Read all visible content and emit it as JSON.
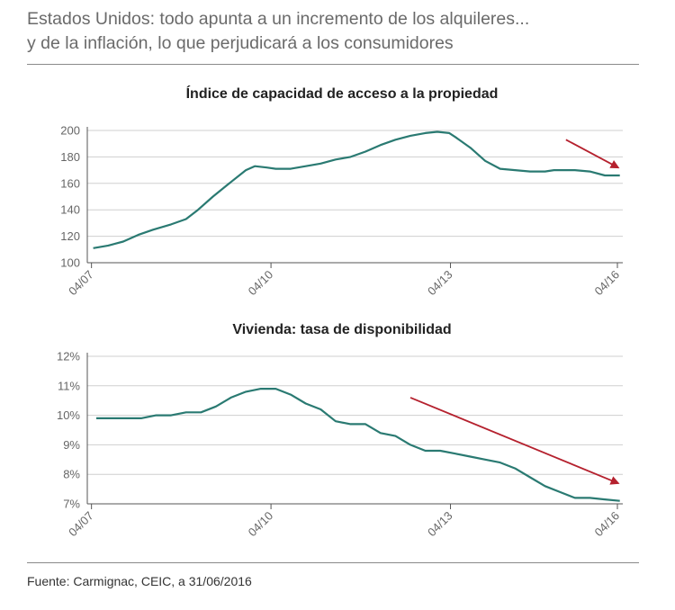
{
  "header": {
    "title_line1": "Estados Unidos: todo apunta a un incremento de los alquileres...",
    "title_line2": "y de la inflación, lo que perjudicará a los consumidores"
  },
  "source": "Fuente: Carmignac, CEIC, a 31/06/2016",
  "colors": {
    "line": "#2a7a72",
    "arrow": "#b5212e",
    "axis": "#555555",
    "grid": "#cfcfcf",
    "tick_text": "#666666"
  },
  "chart_data": [
    {
      "type": "line",
      "title": "Índice de capacidad de acceso a la propiedad",
      "xlabel": "",
      "ylabel": "",
      "ylim": [
        100,
        200
      ],
      "xlim": [
        2007.35,
        2016.3
      ],
      "yticks": [
        100,
        120,
        140,
        160,
        180,
        200
      ],
      "ytick_labels": [
        "100",
        "120",
        "140",
        "160",
        "180",
        "200"
      ],
      "xticks": [
        2007.42,
        2010.42,
        2013.42,
        2016.42
      ],
      "xtick_labels": [
        "04/07",
        "04/10",
        "04/13",
        "04/16"
      ],
      "series": [
        {
          "name": "Índice de capacidad de acceso a la propiedad",
          "x": [
            2007.45,
            2007.7,
            2007.95,
            2008.2,
            2008.45,
            2008.75,
            2009.0,
            2009.2,
            2009.45,
            2009.75,
            2010.0,
            2010.15,
            2010.35,
            2010.5,
            2010.75,
            2011.0,
            2011.25,
            2011.5,
            2011.75,
            2012.0,
            2012.25,
            2012.5,
            2012.75,
            2013.0,
            2013.2,
            2013.4,
            2013.5,
            2013.75,
            2014.0,
            2014.25,
            2014.5,
            2014.75,
            2015.0,
            2015.15,
            2015.5,
            2015.75,
            2016.0,
            2016.25
          ],
          "values": [
            111,
            113,
            116,
            121,
            125,
            129,
            133,
            140,
            150,
            161,
            170,
            173,
            172,
            171,
            171,
            173,
            175,
            178,
            180,
            184,
            189,
            193,
            196,
            198,
            199,
            198,
            195,
            187,
            177,
            171,
            170,
            169,
            169,
            170,
            170,
            169,
            166,
            166
          ]
        }
      ],
      "arrow": {
        "from": [
          2015.35,
          193
        ],
        "to": [
          2016.22,
          172
        ]
      }
    },
    {
      "type": "line",
      "title": "Vivienda: tasa de disponibilidad",
      "xlabel": "",
      "ylabel": "",
      "ylim": [
        7,
        12
      ],
      "xlim": [
        2007.35,
        2016.3
      ],
      "yticks": [
        7,
        8,
        9,
        10,
        11,
        12
      ],
      "ytick_labels": [
        "7%",
        "8%",
        "9%",
        "10%",
        "11%",
        "12%"
      ],
      "xticks": [
        2007.42,
        2010.42,
        2013.42,
        2016.42
      ],
      "xtick_labels": [
        "04/07",
        "04/10",
        "04/13",
        "04/16"
      ],
      "series": [
        {
          "name": "Vivienda: tasa de disponibilidad",
          "x": [
            2007.5,
            2007.75,
            2008.0,
            2008.25,
            2008.5,
            2008.75,
            2009.0,
            2009.25,
            2009.5,
            2009.75,
            2010.0,
            2010.25,
            2010.5,
            2010.75,
            2011.0,
            2011.25,
            2011.5,
            2011.75,
            2012.0,
            2012.25,
            2012.5,
            2012.75,
            2013.0,
            2013.25,
            2013.5,
            2013.75,
            2014.0,
            2014.25,
            2014.5,
            2014.75,
            2015.0,
            2015.25,
            2015.5,
            2015.75,
            2016.0,
            2016.25
          ],
          "values": [
            9.9,
            9.9,
            9.9,
            9.9,
            10.0,
            10.0,
            10.1,
            10.1,
            10.3,
            10.6,
            10.8,
            10.9,
            10.9,
            10.7,
            10.4,
            10.2,
            9.8,
            9.7,
            9.7,
            9.4,
            9.3,
            9.0,
            8.8,
            8.8,
            8.7,
            8.6,
            8.5,
            8.4,
            8.2,
            7.9,
            7.6,
            7.4,
            7.2,
            7.2,
            7.15,
            7.1
          ]
        }
      ],
      "arrow": {
        "from": [
          2012.75,
          10.6
        ],
        "to": [
          2016.22,
          7.7
        ]
      }
    }
  ]
}
